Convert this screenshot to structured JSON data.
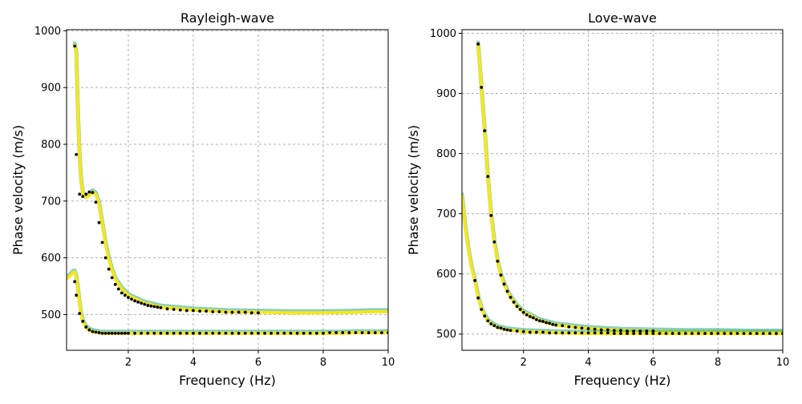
{
  "chart_data": [
    {
      "type": "line",
      "title": "Rayleigh-wave",
      "xlabel": "Frequency (Hz)",
      "ylabel": "Phase velocity (m/s)",
      "xlim": [
        0.1,
        10
      ],
      "ylim": [
        437,
        1002
      ],
      "xticks": [
        "2",
        "4",
        "6",
        "8",
        "10"
      ],
      "yticks": [
        "500",
        "600",
        "700",
        "800",
        "900",
        "1000"
      ],
      "grid": true,
      "colors": {
        "model_band": "#f5e61f",
        "model_band_alt": "#2aa58a",
        "observed": "#000000"
      },
      "series": [
        {
          "role": "model",
          "x": [
            0.35,
            0.4,
            0.45,
            0.5,
            0.55,
            0.6,
            0.7,
            0.8,
            0.9,
            1.0,
            1.1,
            1.2,
            1.3,
            1.4,
            1.5,
            1.6,
            1.8,
            2.0,
            2.5,
            3.0,
            4.0,
            5.0,
            6.0,
            7.0,
            8.0,
            9.0,
            9.5,
            10.0
          ],
          "y": [
            975,
            960,
            855,
            780,
            735,
            712,
            706,
            710,
            716,
            712,
            695,
            660,
            625,
            598,
            578,
            562,
            545,
            533,
            520,
            513,
            508,
            505,
            504,
            503,
            503,
            504,
            505,
            505
          ]
        },
        {
          "role": "model",
          "x": [
            0.1,
            0.2,
            0.3,
            0.35,
            0.4,
            0.45,
            0.5,
            0.55,
            0.6,
            0.7,
            0.8,
            0.9,
            1.0,
            1.1,
            1.2,
            1.5,
            2.0,
            3.0,
            4.0,
            5.0,
            6.0,
            7.0,
            8.0,
            8.5,
            9.0,
            9.5,
            10.0
          ],
          "y": [
            563,
            568,
            574,
            575,
            565,
            545,
            520,
            500,
            488,
            477,
            472,
            470,
            469,
            468,
            467,
            467,
            467,
            467,
            467,
            467,
            467,
            467,
            467,
            467,
            468,
            468,
            468
          ]
        },
        {
          "role": "observed",
          "x": [
            0.35,
            0.4,
            0.5,
            0.6,
            0.7,
            0.8,
            0.9,
            1.0,
            1.1,
            1.2,
            1.3,
            1.4,
            1.5,
            1.6,
            1.7,
            1.8,
            1.9,
            2.0,
            2.1,
            2.2,
            2.3,
            2.4,
            2.5,
            2.6,
            2.7,
            2.8,
            2.9,
            3.0,
            3.2,
            3.4,
            3.6,
            3.8,
            4.0,
            4.2,
            4.4,
            4.6,
            4.8,
            5.0,
            5.2,
            5.4,
            5.6,
            5.8,
            6.0
          ],
          "y": [
            973,
            782,
            712,
            708,
            712,
            716,
            715,
            698,
            662,
            627,
            600,
            580,
            565,
            553,
            545,
            538,
            534,
            530,
            527,
            524,
            522,
            520,
            518,
            516,
            515,
            514,
            513,
            512,
            510,
            509,
            508,
            507,
            507,
            506,
            506,
            505,
            505,
            504,
            504,
            504,
            504,
            503,
            503
          ]
        },
        {
          "role": "observed",
          "x": [
            0.35,
            0.4,
            0.5,
            0.6,
            0.7,
            0.8,
            0.9,
            1.0,
            1.1,
            1.2,
            1.3,
            1.4,
            1.5,
            1.6,
            1.7,
            1.8,
            1.9,
            2.0,
            2.2,
            2.4,
            2.6,
            2.8,
            3.0,
            3.2,
            3.4,
            3.6,
            3.8,
            4.0,
            4.2,
            4.4,
            4.6,
            4.8,
            5.0,
            5.2,
            5.4,
            5.6,
            5.8,
            6.0,
            6.2,
            6.4,
            6.6,
            6.8,
            7.0,
            7.2,
            7.4,
            7.6,
            7.8,
            8.0,
            8.2,
            8.4,
            8.6,
            8.8,
            9.0,
            9.2,
            9.4,
            9.6,
            9.8,
            10.0
          ],
          "y": [
            558,
            534,
            502,
            488,
            478,
            473,
            470,
            469,
            468,
            467,
            467,
            467,
            467,
            467,
            467,
            467,
            467,
            467,
            467,
            467,
            467,
            467,
            467,
            467,
            467,
            467,
            467,
            467,
            467,
            467,
            467,
            467,
            467,
            467,
            467,
            467,
            467,
            467,
            467,
            467,
            467,
            467,
            467,
            467,
            467,
            467,
            467,
            467,
            468,
            468,
            468,
            468,
            468,
            468,
            468,
            468,
            468,
            468
          ]
        }
      ]
    },
    {
      "type": "line",
      "title": "Love-wave",
      "xlabel": "Frequency (Hz)",
      "ylabel": "Phase velocity (m/s)",
      "xlim": [
        0.1,
        10
      ],
      "ylim": [
        473,
        1006
      ],
      "xticks": [
        "2",
        "4",
        "6",
        "8",
        "10"
      ],
      "yticks": [
        "500",
        "600",
        "700",
        "800",
        "900",
        "1000"
      ],
      "grid": true,
      "colors": {
        "model_band": "#f5e61f",
        "model_band_alt": "#2aa58a",
        "observed": "#000000"
      },
      "series": [
        {
          "role": "model",
          "x": [
            0.6,
            0.7,
            0.8,
            0.9,
            1.0,
            1.1,
            1.2,
            1.3,
            1.4,
            1.5,
            1.6,
            1.8,
            2.0,
            2.5,
            3.0,
            4.0,
            5.0,
            6.0,
            7.0,
            8.0,
            9.0,
            10.0
          ],
          "y": [
            982,
            910,
            838,
            762,
            697,
            653,
            621,
            598,
            583,
            571,
            561,
            546,
            536,
            522,
            515,
            509,
            506,
            505,
            504,
            504,
            503,
            503
          ]
        },
        {
          "role": "model",
          "x": [
            0.1,
            0.2,
            0.3,
            0.4,
            0.5,
            0.6,
            0.7,
            0.8,
            0.9,
            1.0,
            1.2,
            1.5,
            2.0,
            3.0,
            4.0,
            6.0,
            8.0,
            10.0
          ],
          "y": [
            730,
            680,
            640,
            610,
            588,
            562,
            542,
            530,
            522,
            517,
            511,
            507,
            504,
            502,
            501,
            501,
            501,
            501
          ]
        },
        {
          "role": "observed",
          "x": [
            0.6,
            0.7,
            0.8,
            0.9,
            1.0,
            1.1,
            1.2,
            1.3,
            1.4,
            1.5,
            1.6,
            1.7,
            1.8,
            1.9,
            2.0,
            2.1,
            2.2,
            2.3,
            2.4,
            2.5,
            2.6,
            2.7,
            2.8,
            2.9,
            3.0,
            3.2,
            3.4,
            3.6,
            3.8,
            4.0,
            4.2,
            4.4,
            4.6,
            4.8,
            5.0,
            5.2,
            5.4,
            5.6,
            5.8,
            6.0
          ],
          "y": [
            982,
            910,
            838,
            762,
            697,
            653,
            621,
            598,
            583,
            571,
            561,
            553,
            546,
            541,
            536,
            532,
            529,
            527,
            524,
            522,
            521,
            519,
            518,
            516,
            515,
            514,
            512,
            511,
            510,
            509,
            508,
            507,
            507,
            506,
            506,
            505,
            505,
            505,
            505,
            505
          ]
        },
        {
          "role": "observed",
          "x": [
            0.5,
            0.6,
            0.7,
            0.8,
            0.9,
            1.0,
            1.1,
            1.2,
            1.3,
            1.4,
            1.5,
            1.6,
            1.8,
            2.0,
            2.2,
            2.4,
            2.6,
            2.8,
            3.0,
            3.2,
            3.4,
            3.6,
            3.8,
            4.0,
            4.2,
            4.4,
            4.6,
            4.8,
            5.0,
            5.2,
            5.4,
            5.6,
            5.8,
            6.0,
            6.2,
            6.4,
            6.6,
            6.8,
            7.0,
            7.2,
            7.4,
            7.6,
            7.8,
            8.0,
            8.2,
            8.4,
            8.6,
            8.8,
            9.0,
            9.2,
            9.4,
            9.6,
            9.8,
            10.0
          ],
          "y": [
            589,
            560,
            541,
            530,
            522,
            517,
            514,
            511,
            510,
            508,
            507,
            506,
            505,
            504,
            503,
            503,
            503,
            502,
            502,
            502,
            502,
            502,
            502,
            502,
            502,
            502,
            502,
            501,
            501,
            501,
            501,
            501,
            501,
            501,
            501,
            501,
            501,
            501,
            501,
            501,
            501,
            501,
            501,
            501,
            501,
            501,
            501,
            501,
            501,
            501,
            501,
            501,
            501,
            501
          ]
        }
      ]
    }
  ]
}
